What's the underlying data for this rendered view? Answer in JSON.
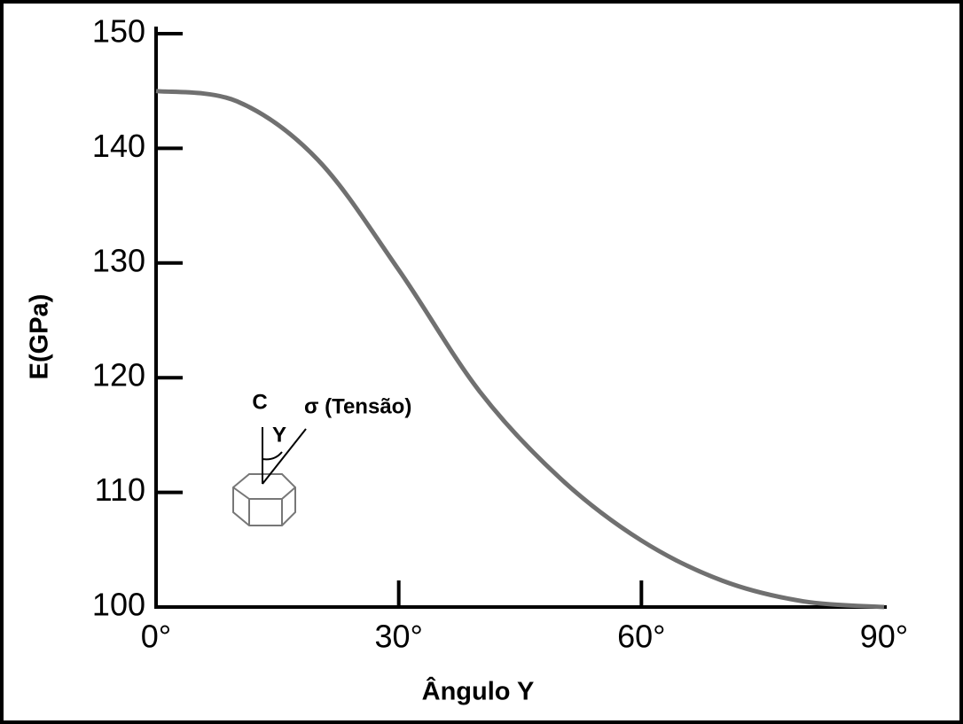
{
  "chart_data": {
    "type": "line",
    "x_label": "Ângulo Y",
    "y_label": "E(GPa)",
    "x": [
      0,
      10,
      20,
      30,
      40,
      50,
      60,
      70,
      80,
      90
    ],
    "values": [
      145,
      144.1,
      139.0,
      129.4,
      118.8,
      111.2,
      105.8,
      102.3,
      100.5,
      100
    ],
    "color": "#707070",
    "xlim": [
      0,
      90
    ],
    "ylim": [
      100,
      150
    ],
    "xticks": [
      {
        "value": 0,
        "label": "0°"
      },
      {
        "value": 30,
        "label": "30°"
      },
      {
        "value": 60,
        "label": "60°"
      },
      {
        "value": 90,
        "label": "90°"
      }
    ],
    "yticks": [
      100,
      110,
      120,
      130,
      140,
      150
    ],
    "annotations": [
      "C",
      "Y",
      "σ (Tensão)"
    ]
  }
}
